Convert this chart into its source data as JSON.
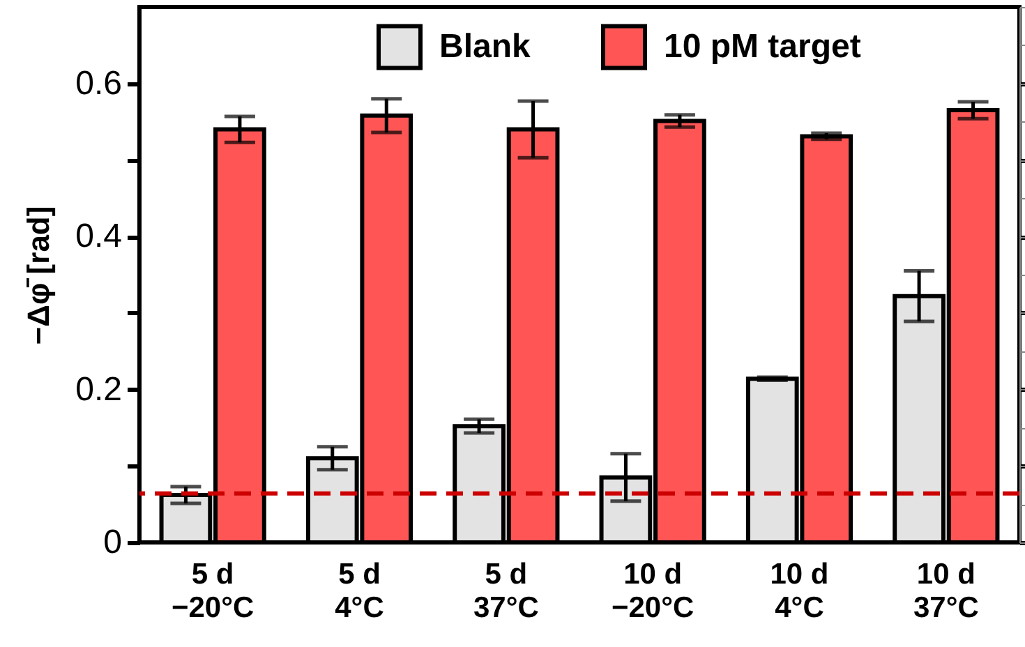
{
  "chart_data": {
    "type": "bar",
    "ylabel": "−Δφ̄ [rad]",
    "categories": [
      "5 d\n−20°C",
      "5 d\n4°C",
      "5 d\n37°C",
      "10 d\n−20°C",
      "10 d\n4°C",
      "10 d\n37°C"
    ],
    "series": [
      {
        "name": "Blank",
        "color": "#e3e3e3",
        "values": [
          0.062,
          0.11,
          0.152,
          0.085,
          0.214,
          0.322
        ],
        "errors": [
          0.011,
          0.015,
          0.009,
          0.031,
          0.002,
          0.033
        ]
      },
      {
        "name": "10 pM target",
        "color": "#ff5555",
        "values": [
          0.54,
          0.558,
          0.54,
          0.551,
          0.531,
          0.565
        ],
        "errors": [
          0.017,
          0.022,
          0.037,
          0.008,
          0.004,
          0.011
        ]
      }
    ],
    "ylim": [
      0,
      0.7
    ],
    "yticks": [
      0,
      {
        "value": 0.1,
        "label": null
      },
      0.2,
      {
        "value": 0.3,
        "label": null
      },
      0.4,
      {
        "value": 0.5,
        "label": null
      },
      0.6
    ],
    "ref_lines": [
      {
        "axis": "y",
        "value": 0.064,
        "color": "#cc0000",
        "line_style": "dashed"
      }
    ],
    "legend": "top",
    "grid": false
  }
}
